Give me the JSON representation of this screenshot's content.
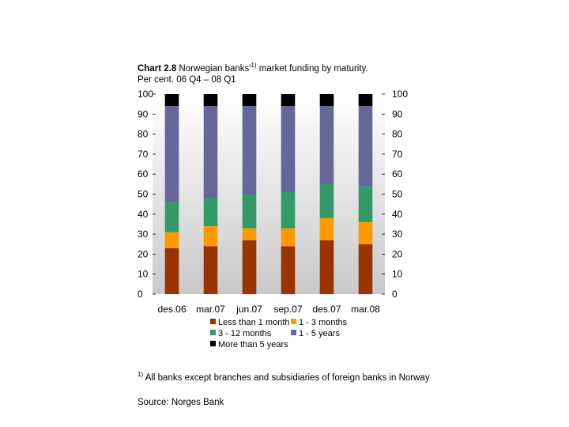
{
  "title": {
    "label": "Chart 2.8",
    "text": "Norwegian banks'",
    "sup": "1)",
    "text_after": " market funding by maturity.",
    "subtitle": "Per cent. 06 Q4 – 08 Q1"
  },
  "footnote": {
    "marker": "1)",
    "text": "All banks except branches and subsidiaries of foreign banks in Norway"
  },
  "source": "Source: Norges Bank",
  "chart_data": {
    "type": "bar",
    "stacked": true,
    "categories": [
      "des.06",
      "mar.07",
      "jun.07",
      "sep.07",
      "des.07",
      "mar.08"
    ],
    "ylim": [
      0,
      100
    ],
    "yticks": [
      0,
      10,
      20,
      30,
      40,
      50,
      60,
      70,
      80,
      90,
      100
    ],
    "right_axis": true,
    "legend_position": "bottom",
    "series": [
      {
        "name": "Less than 1 month",
        "color": "#993300",
        "values": [
          23,
          24,
          27,
          24,
          27,
          25
        ]
      },
      {
        "name": "1 - 3 months",
        "color": "#FF9900",
        "values": [
          8,
          10,
          6,
          9,
          11,
          11
        ]
      },
      {
        "name": "3 - 12 months",
        "color": "#339966",
        "values": [
          15,
          14,
          17,
          18,
          17,
          18
        ]
      },
      {
        "name": "1 - 5 years",
        "color": "#666699",
        "values": [
          48,
          46,
          44,
          43,
          39,
          40
        ]
      },
      {
        "name": "More than 5 years",
        "color": "#000000",
        "values": [
          6,
          6,
          6,
          6,
          6,
          6
        ]
      }
    ]
  }
}
